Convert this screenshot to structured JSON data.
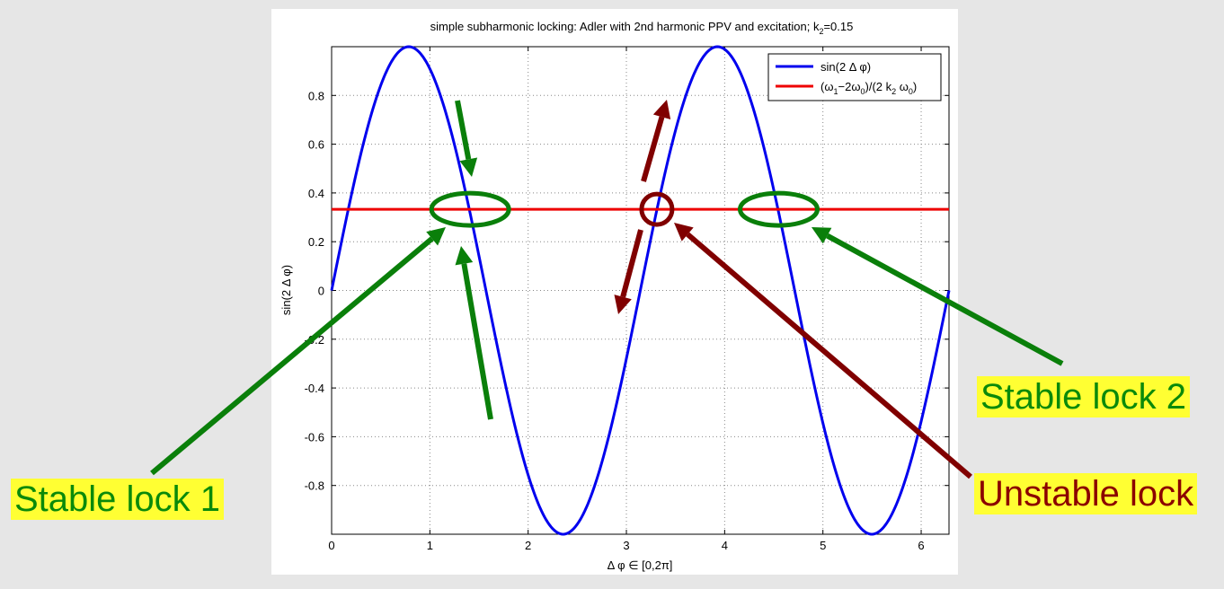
{
  "chart_data": {
    "type": "line",
    "title": "simple subharmonic locking: Adler with 2nd harmonic PPV and excitation; k",
    "title_subscript": "2",
    "title_suffix": "=0.15",
    "xlabel": "Δ φ ∈ [0,2π]",
    "ylabel": "sin(2 Δ φ)",
    "xlim": [
      0,
      6.2832
    ],
    "ylim": [
      -1,
      1
    ],
    "xticks": [
      0,
      1,
      2,
      3,
      4,
      5,
      6
    ],
    "yticks": [
      -0.8,
      -0.6,
      -0.4,
      -0.2,
      0,
      0.2,
      0.4,
      0.6,
      0.8
    ],
    "grid": true,
    "legend_placement": "top-right",
    "series": [
      {
        "name": "sin(2 Δ φ)",
        "color": "#0000ee",
        "function": "sin(2x)"
      },
      {
        "name": "(ω1−2ω0)/(2 k2 ω0)",
        "color": "#ee0000",
        "x": [
          0,
          6.2832
        ],
        "y": [
          0.333,
          0.333
        ]
      }
    ],
    "legend_labels": [
      {
        "parts": [
          [
            "sin(2 Δ φ)",
            ""
          ]
        ]
      },
      {
        "parts": [
          [
            "(ω",
            ""
          ],
          [
            "1",
            "sub"
          ],
          [
            "−2ω",
            ""
          ],
          [
            "0",
            "sub"
          ],
          [
            ")/(2 k",
            ""
          ],
          [
            "2",
            "sub"
          ],
          [
            " ω",
            ""
          ],
          [
            "0",
            "sub"
          ],
          [
            ")",
            ""
          ]
        ]
      }
    ],
    "annotations": {
      "stable_color": "#0a7f0a",
      "unstable_color": "#800000",
      "stable_ellipses": [
        {
          "x": 1.41,
          "y": 0.333
        },
        {
          "x": 4.55,
          "y": 0.333
        }
      ],
      "unstable_circle": {
        "x": 3.31,
        "y": 0.333
      }
    }
  },
  "callouts": {
    "stable_lock_1": "Stable lock 1",
    "stable_lock_2": "Stable lock 2",
    "unstable_lock": "Unstable lock"
  }
}
